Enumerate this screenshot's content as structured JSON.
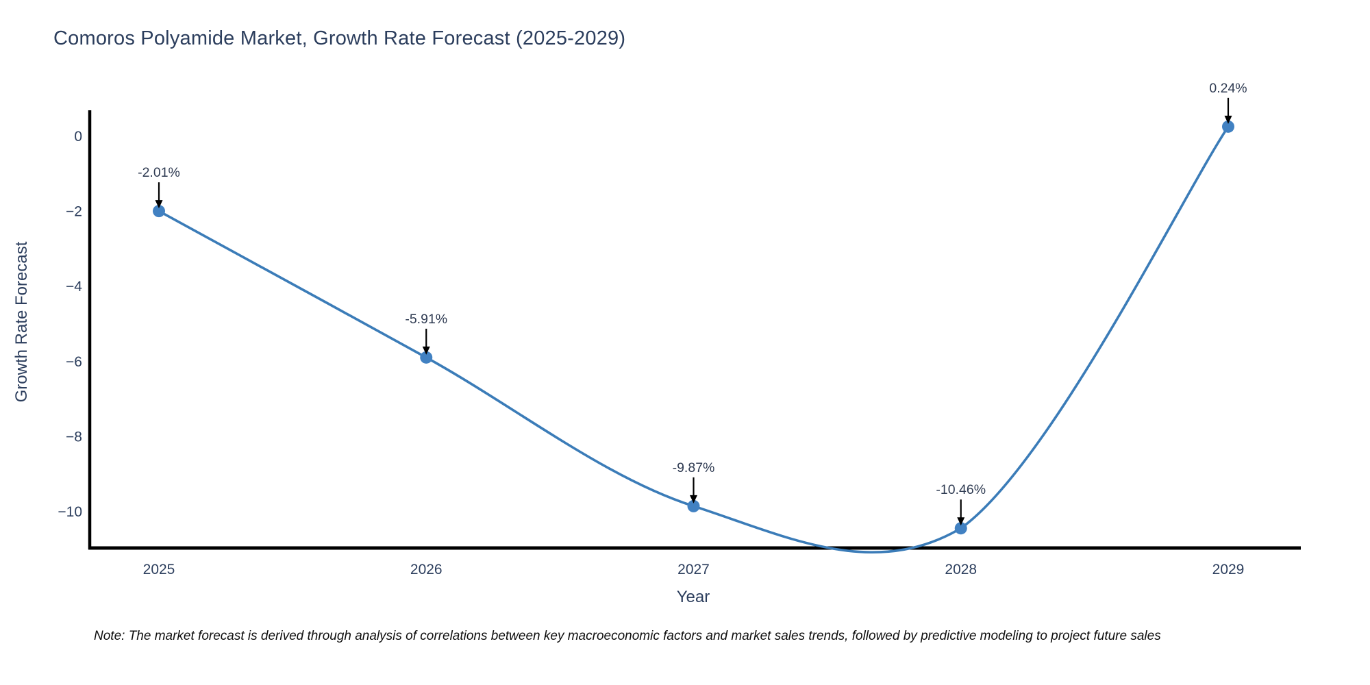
{
  "title": "Comoros Polyamide Market, Growth Rate Forecast (2025-2029)",
  "note": "Note: The market forecast is derived through analysis of correlations between key macroeconomic factors and market sales trends, followed by predictive modeling to project future sales",
  "chart_data": {
    "type": "line",
    "title": "Comoros Polyamide Market, Growth Rate Forecast (2025-2029)",
    "xlabel": "Year",
    "ylabel": "Growth Rate Forecast",
    "x": [
      2025,
      2026,
      2027,
      2028,
      2029
    ],
    "series": [
      {
        "name": "Growth Rate Forecast",
        "values": [
          -2.01,
          -5.91,
          -9.87,
          -10.46,
          0.24
        ]
      }
    ],
    "point_labels": [
      "-2.01%",
      "-5.91%",
      "-9.87%",
      "-10.46%",
      "0.24%"
    ],
    "xticks": [
      "2025",
      "2026",
      "2027",
      "2028",
      "2029"
    ],
    "yticks": [
      0,
      -2,
      -4,
      -6,
      -8,
      -10
    ],
    "ytick_labels": [
      "0",
      "−2",
      "−4",
      "−6",
      "−8",
      "−10"
    ],
    "ylim": [
      -11.0,
      0.7
    ],
    "line_shape": "spline",
    "grid": false,
    "legend": "none",
    "annotation_arrows": true,
    "colors": {
      "line": "#3b7cb8",
      "marker": "#4181c2",
      "axis": "#000000",
      "axis_text": "#2c3e5d",
      "annotation_text": "#2f3b52",
      "arrow": "#000000",
      "title": "#2c3e5d",
      "background": "#ffffff"
    }
  }
}
